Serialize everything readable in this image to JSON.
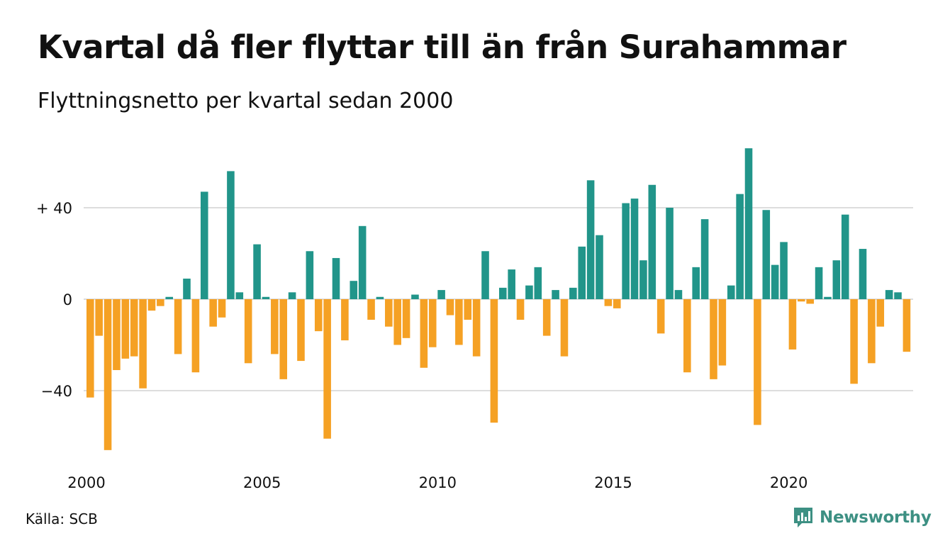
{
  "header": {
    "title": "Kvartal då fler flyttar till än från Surahammar",
    "subtitle": "Flyttningsnetto per kvartal sedan 2000"
  },
  "footer": {
    "source": "Källa: SCB",
    "brand": "Newsworthy",
    "brand_icon": "newsworthy-logo-icon"
  },
  "colors": {
    "positive": "#21958a",
    "negative": "#f5a124",
    "grid": "#dddddd",
    "brand": "#3d9083"
  },
  "chart_data": {
    "type": "bar",
    "title": "Kvartal då fler flyttar till än från Surahammar",
    "subtitle": "Flyttningsnetto per kvartal sedan 2000",
    "x_start": "2000 Q1",
    "x_ticks": [
      "2000",
      "2005",
      "2010",
      "2015",
      "2020"
    ],
    "y_ticks": [
      {
        "value": 40,
        "label": "+ 40"
      },
      {
        "value": 0,
        "label": "0"
      },
      {
        "value": -40,
        "label": "−40"
      }
    ],
    "ylim": [
      -67,
      67
    ],
    "grid": true,
    "legend": "none",
    "values": [
      -43,
      -16,
      -66,
      -31,
      -26,
      -25,
      -39,
      -5,
      -3,
      1,
      -24,
      9,
      -32,
      47,
      -12,
      -8,
      56,
      3,
      -28,
      24,
      1,
      -24,
      -35,
      3,
      -27,
      21,
      -14,
      -61,
      18,
      -18,
      8,
      32,
      -9,
      1,
      -12,
      -20,
      -17,
      2,
      -30,
      -21,
      4,
      -7,
      -20,
      -9,
      -25,
      21,
      -54,
      5,
      13,
      -9,
      6,
      14,
      -16,
      4,
      -25,
      5,
      23,
      52,
      28,
      -3,
      -4,
      42,
      44,
      17,
      50,
      -15,
      40,
      4,
      -32,
      14,
      35,
      -35,
      -29,
      6,
      46,
      66,
      -55,
      39,
      15,
      25,
      -22,
      -1,
      -2,
      14,
      1,
      17,
      37,
      -37,
      22,
      -28,
      -12,
      4,
      3,
      -23
    ]
  }
}
